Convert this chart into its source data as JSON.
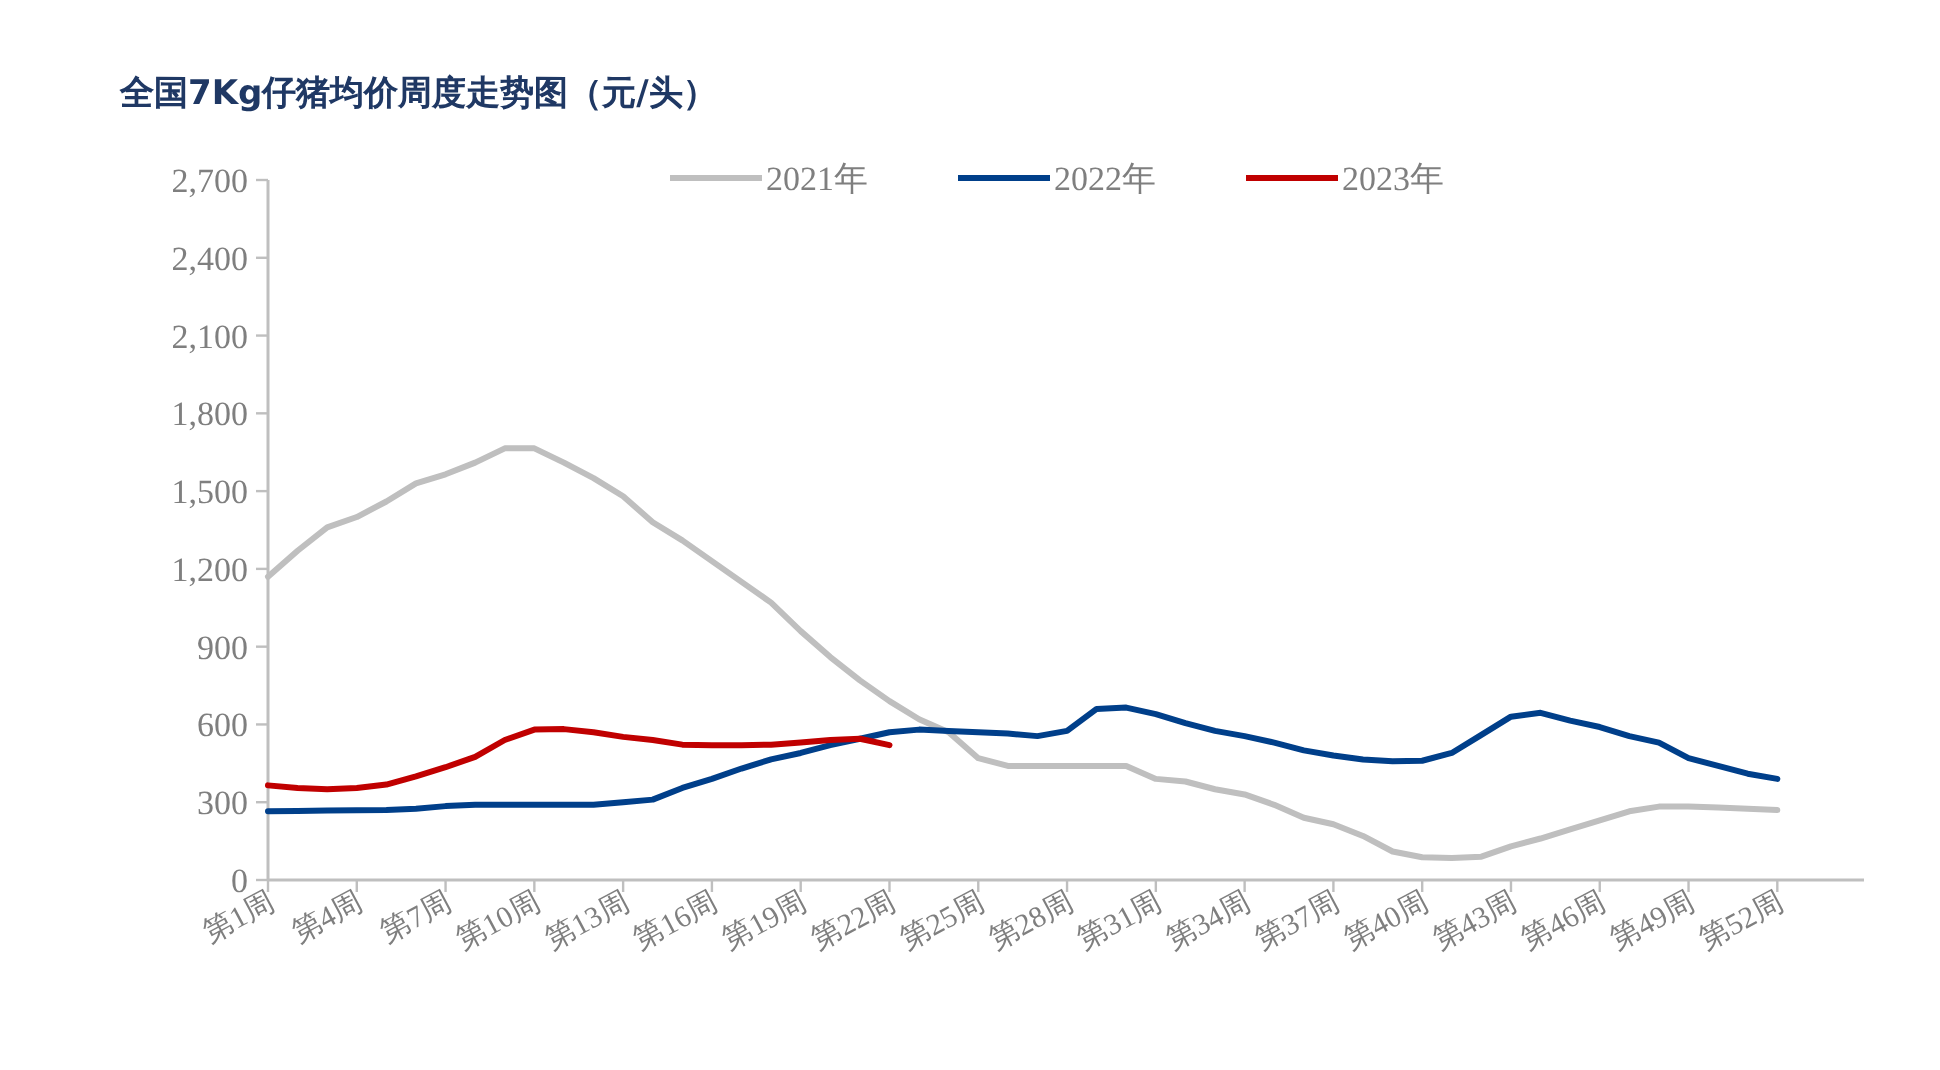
{
  "chart_data": {
    "type": "line",
    "title": "全国7Kg仔猪均价周度走势图（元/头）",
    "categories": [
      "第1周",
      null,
      null,
      "第4周",
      null,
      null,
      "第7周",
      null,
      null,
      "第10周",
      null,
      null,
      "第13周",
      null,
      null,
      "第16周",
      null,
      null,
      "第19周",
      null,
      null,
      "第22周",
      null,
      null,
      "第25周",
      null,
      null,
      "第28周",
      null,
      null,
      "第31周",
      null,
      null,
      "第34周",
      null,
      null,
      "第37周",
      null,
      null,
      "第40周",
      null,
      null,
      "第43周",
      null,
      null,
      "第46周",
      null,
      null,
      "第49周",
      null,
      null,
      "第52周"
    ],
    "ylim": [
      0,
      2700
    ],
    "yticks": [
      0,
      300,
      600,
      900,
      {
        "value": 1200,
        "label": "1,200"
      },
      {
        "value": 1500,
        "label": "1,500"
      },
      {
        "value": 1800,
        "label": "1,800"
      },
      {
        "value": 2100,
        "label": "2,100"
      },
      {
        "value": 2400,
        "label": "2,400"
      },
      {
        "value": 2700,
        "label": "2,700"
      }
    ],
    "legend": "top",
    "grid": false,
    "marker": "none",
    "line_style": "solid",
    "series": [
      {
        "name": "2021年",
        "color": "#bfbfbf",
        "values": [
          1170,
          1270,
          1360,
          1400,
          1460,
          1530,
          1565,
          1610,
          1665,
          1665,
          1610,
          1550,
          1480,
          1380,
          1310,
          1230,
          1150,
          1070,
          960,
          860,
          770,
          690,
          620,
          570,
          470,
          440,
          440,
          440,
          440,
          440,
          390,
          380,
          350,
          330,
          290,
          240,
          215,
          170,
          110,
          88,
          85,
          90,
          130,
          160,
          195,
          230,
          265,
          283,
          283,
          280,
          275,
          270
        ]
      },
      {
        "name": "2022年",
        "color": "#003f8a",
        "values": [
          265,
          266,
          268,
          269,
          270,
          275,
          285,
          290,
          290,
          290,
          290,
          290,
          300,
          310,
          355,
          390,
          430,
          465,
          490,
          520,
          545,
          570,
          580,
          575,
          570,
          565,
          555,
          575,
          660,
          665,
          640,
          605,
          575,
          555,
          530,
          500,
          480,
          465,
          458,
          460,
          490,
          560,
          630,
          645,
          615,
          590,
          555,
          530,
          470,
          440,
          410,
          390
        ]
      },
      {
        "name": "2023年",
        "color": "#c00000",
        "values": [
          365,
          355,
          350,
          355,
          368,
          400,
          435,
          475,
          540,
          580,
          582,
          570,
          552,
          540,
          522,
          520,
          520,
          522,
          530,
          540,
          545,
          520,
          null,
          null,
          null,
          null,
          null,
          null,
          null,
          null,
          null,
          null,
          null,
          null,
          null,
          null,
          null,
          null,
          null,
          null,
          null,
          null,
          null,
          null,
          null,
          null,
          null,
          null,
          null,
          null,
          null,
          null
        ]
      }
    ]
  }
}
